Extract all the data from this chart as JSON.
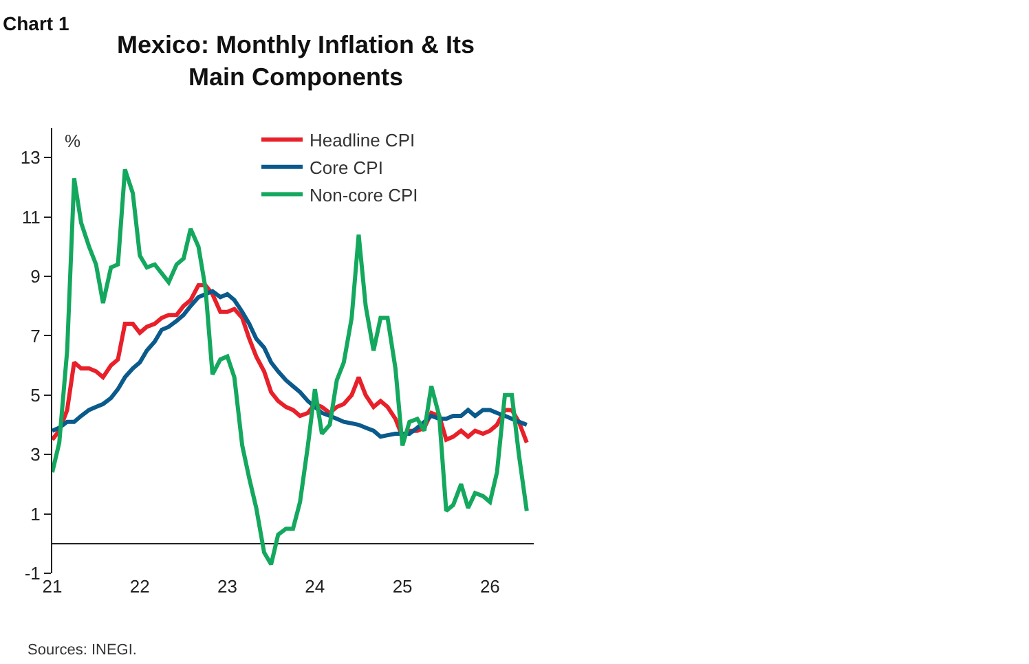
{
  "chart_data": {
    "type": "line",
    "title": "Mexico: Monthly Inflation & Its Main Components",
    "ylabel": "%",
    "annotations": [
      "Chart 1",
      "Sources: INEGI."
    ],
    "x": [
      21.0,
      21.08,
      21.17,
      21.25,
      21.33,
      21.42,
      21.5,
      21.58,
      21.67,
      21.75,
      21.83,
      21.92,
      22.0,
      22.08,
      22.17,
      22.25,
      22.33,
      22.42,
      22.5,
      22.58,
      22.67,
      22.75,
      22.83,
      22.92,
      23.0,
      23.08,
      23.17,
      23.25,
      23.33,
      23.42,
      23.5,
      23.58,
      23.67,
      23.75,
      23.83,
      23.92,
      24.0,
      24.08,
      24.17,
      24.25,
      24.33,
      24.42,
      24.5,
      24.58,
      24.67,
      24.75,
      24.83,
      24.92,
      25.0,
      25.08,
      25.17,
      25.25,
      25.33,
      25.42,
      25.5,
      25.58,
      25.67,
      25.75,
      25.83,
      25.92,
      26.0,
      26.08,
      26.17,
      26.25,
      26.33,
      26.42
    ],
    "series": [
      {
        "name": "Headline CPI",
        "color": "#e8202a",
        "values": [
          3.5,
          3.8,
          4.5,
          6.1,
          5.9,
          5.9,
          5.8,
          5.6,
          6.0,
          6.2,
          7.4,
          7.4,
          7.1,
          7.3,
          7.4,
          7.6,
          7.7,
          7.7,
          8.0,
          8.2,
          8.7,
          8.7,
          8.4,
          7.8,
          7.8,
          7.9,
          7.6,
          6.9,
          6.3,
          5.8,
          5.1,
          4.8,
          4.6,
          4.5,
          4.3,
          4.4,
          4.7,
          4.6,
          4.4,
          4.6,
          4.7,
          5.0,
          5.6,
          5.0,
          4.6,
          4.8,
          4.6,
          4.2,
          3.6,
          3.8,
          3.8,
          3.9,
          4.4,
          4.3,
          3.5,
          3.6,
          3.8,
          3.6,
          3.8,
          3.7,
          3.8,
          4.0,
          4.5,
          4.5,
          4.1,
          3.4
        ]
      },
      {
        "name": "Core CPI",
        "color": "#0a5a8c",
        "values": [
          3.8,
          3.9,
          4.1,
          4.1,
          4.3,
          4.5,
          4.6,
          4.7,
          4.9,
          5.2,
          5.6,
          5.9,
          6.1,
          6.5,
          6.8,
          7.2,
          7.3,
          7.5,
          7.7,
          8.0,
          8.3,
          8.4,
          8.5,
          8.3,
          8.4,
          8.2,
          7.8,
          7.4,
          6.9,
          6.6,
          6.1,
          5.8,
          5.5,
          5.3,
          5.1,
          4.8,
          4.6,
          4.4,
          4.3,
          4.2,
          4.1,
          4.05,
          4.0,
          3.9,
          3.8,
          3.6,
          3.65,
          3.7,
          3.7,
          3.7,
          3.9,
          4.1,
          4.3,
          4.2,
          4.2,
          4.3,
          4.3,
          4.5,
          4.3,
          4.5,
          4.5,
          4.4,
          4.3,
          4.2,
          4.1,
          4.0
        ]
      },
      {
        "name": "Non-core CPI",
        "color": "#14a85e",
        "values": [
          2.4,
          3.4,
          6.5,
          12.3,
          10.8,
          10.0,
          9.4,
          8.1,
          9.3,
          9.4,
          12.6,
          11.8,
          9.7,
          9.3,
          9.4,
          9.1,
          8.8,
          9.4,
          9.6,
          10.6,
          10.0,
          8.6,
          5.7,
          6.2,
          6.3,
          5.6,
          3.3,
          2.2,
          1.2,
          -0.3,
          -0.7,
          0.3,
          0.5,
          0.5,
          1.4,
          3.3,
          5.2,
          3.7,
          4.0,
          5.5,
          6.1,
          7.6,
          10.4,
          8.0,
          6.5,
          7.6,
          7.6,
          5.9,
          3.3,
          4.1,
          4.2,
          3.8,
          5.3,
          4.3,
          1.1,
          1.3,
          2.0,
          1.2,
          1.7,
          1.6,
          1.4,
          2.4,
          5.0,
          5.0,
          3.0,
          1.1
        ]
      }
    ],
    "xlim": [
      21,
      26.5
    ],
    "xticks": [
      21,
      22,
      23,
      24,
      25,
      26
    ],
    "ylim": [
      -1,
      14
    ],
    "yticks": [
      -1,
      1,
      3,
      5,
      7,
      9,
      11,
      13
    ],
    "legend": "top right",
    "line_style": "solid",
    "marker": "none"
  }
}
